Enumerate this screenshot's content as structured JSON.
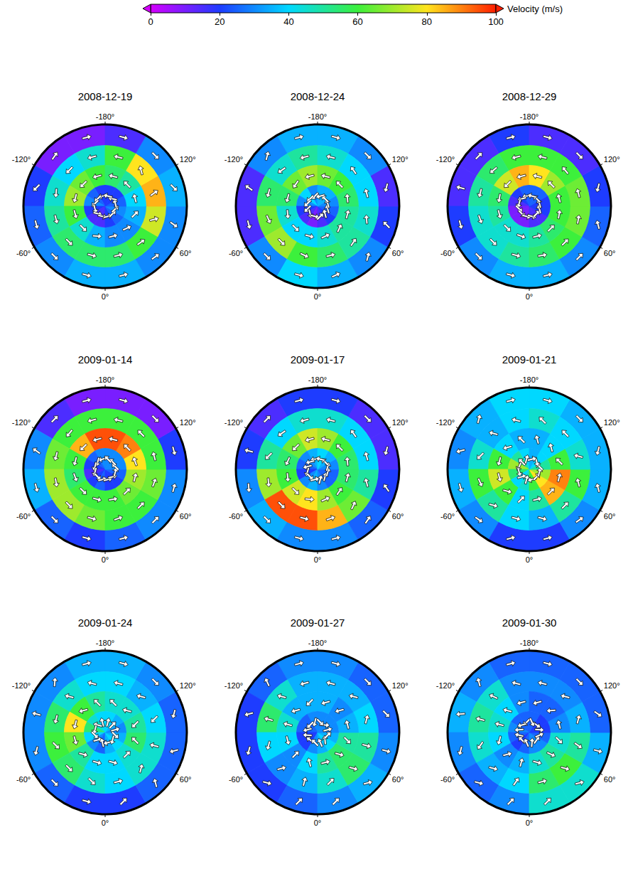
{
  "chart_data": {
    "type": "polar_vector_map",
    "colorbar": {
      "label": "Velocity (m/s)",
      "lim": [
        0,
        100
      ],
      "ticks": [
        0,
        20,
        40,
        60,
        80,
        100
      ],
      "colors": [
        "#d400ff",
        "#1e3cff",
        "#00d8ff",
        "#3cf03c",
        "#ffe41e",
        "#ff1e00"
      ]
    },
    "xlim": [
      -180,
      180
    ],
    "xticks": [
      {
        "value": -180,
        "label": "-180°"
      },
      {
        "value": -120,
        "label": "-120°"
      },
      {
        "value": -60,
        "label": "-60°"
      },
      {
        "value": 0,
        "label": "0°"
      },
      {
        "value": 60,
        "label": "60°"
      },
      {
        "value": 120,
        "label": "120°"
      }
    ],
    "ylim": [
      20,
      90
    ],
    "lat_edges": [
      20,
      38,
      55,
      72,
      90
    ],
    "lon_edges": [
      -180,
      -150,
      -120,
      -90,
      -60,
      -30,
      0,
      30,
      60,
      90,
      120,
      150,
      180
    ],
    "panels": [
      {
        "title": "2008-12-19",
        "speed": [
          [
            10,
            10,
            20,
            25,
            30,
            35,
            35,
            30,
            30,
            35,
            30,
            15
          ],
          [
            45,
            40,
            45,
            50,
            55,
            55,
            55,
            60,
            75,
            85,
            80,
            60
          ],
          [
            60,
            65,
            70,
            60,
            45,
            35,
            30,
            30,
            35,
            40,
            50,
            55
          ],
          [
            20,
            25,
            30,
            20,
            15,
            15,
            20,
            25,
            30,
            25,
            20,
            20
          ]
        ],
        "direction": [
          [
            270,
            260,
            120,
            90,
            90,
            90,
            90,
            100,
            200,
            240,
            270,
            270
          ],
          [
            90,
            90,
            80,
            90,
            90,
            90,
            90,
            100,
            150,
            160,
            120,
            90
          ],
          [
            90,
            90,
            90,
            90,
            90,
            80,
            90,
            110,
            120,
            90,
            90,
            90
          ],
          [
            90,
            90,
            120,
            90,
            60,
            90,
            90,
            90,
            120,
            90,
            60,
            90
          ]
        ]
      },
      {
        "title": "2008-12-24",
        "speed": [
          [
            35,
            30,
            15,
            15,
            30,
            40,
            35,
            30,
            20,
            15,
            30,
            35
          ],
          [
            50,
            45,
            55,
            65,
            70,
            60,
            55,
            50,
            45,
            40,
            40,
            45
          ],
          [
            70,
            65,
            55,
            45,
            40,
            40,
            45,
            50,
            50,
            55,
            60,
            65
          ],
          [
            30,
            40,
            30,
            20,
            15,
            10,
            15,
            20,
            25,
            30,
            35,
            35
          ]
        ],
        "direction": [
          [
            270,
            240,
            200,
            90,
            90,
            90,
            80,
            60,
            30,
            300,
            270,
            270
          ],
          [
            90,
            100,
            90,
            80,
            90,
            100,
            90,
            80,
            70,
            90,
            100,
            90
          ],
          [
            90,
            80,
            90,
            100,
            90,
            90,
            80,
            70,
            90,
            100,
            90,
            90
          ],
          [
            60,
            90,
            120,
            150,
            120,
            90,
            60,
            30,
            60,
            90,
            90,
            60
          ]
        ]
      },
      {
        "title": "2008-12-29",
        "speed": [
          [
            20,
            15,
            15,
            20,
            30,
            35,
            35,
            30,
            25,
            20,
            15,
            15
          ],
          [
            60,
            55,
            50,
            45,
            45,
            50,
            55,
            60,
            65,
            65,
            60,
            60
          ],
          [
            85,
            75,
            55,
            50,
            45,
            45,
            50,
            55,
            60,
            60,
            70,
            80
          ],
          [
            25,
            20,
            15,
            10,
            10,
            10,
            15,
            15,
            20,
            20,
            25,
            25
          ]
        ],
        "direction": [
          [
            270,
            270,
            180,
            90,
            90,
            90,
            90,
            90,
            60,
            300,
            270,
            270
          ],
          [
            90,
            95,
            90,
            85,
            90,
            90,
            95,
            90,
            85,
            90,
            95,
            90
          ],
          [
            90,
            90,
            85,
            90,
            90,
            95,
            90,
            90,
            85,
            90,
            90,
            90
          ],
          [
            90,
            120,
            90,
            60,
            90,
            90,
            120,
            90,
            60,
            90,
            90,
            90
          ]
        ]
      },
      {
        "title": "2009-01-14",
        "speed": [
          [
            10,
            15,
            30,
            35,
            25,
            20,
            25,
            30,
            30,
            20,
            10,
            10
          ],
          [
            60,
            60,
            65,
            70,
            70,
            65,
            60,
            60,
            65,
            60,
            60,
            60
          ],
          [
            95,
            85,
            60,
            55,
            60,
            60,
            60,
            65,
            70,
            80,
            90,
            95
          ],
          [
            30,
            25,
            20,
            15,
            20,
            25,
            20,
            20,
            25,
            30,
            30,
            30
          ]
        ],
        "direction": [
          [
            270,
            270,
            200,
            90,
            90,
            90,
            90,
            90,
            90,
            270,
            270,
            270
          ],
          [
            90,
            85,
            90,
            95,
            90,
            90,
            85,
            90,
            95,
            90,
            90,
            90
          ],
          [
            90,
            90,
            90,
            85,
            90,
            90,
            95,
            90,
            90,
            85,
            90,
            90
          ],
          [
            90,
            60,
            90,
            120,
            90,
            60,
            90,
            120,
            90,
            60,
            90,
            120
          ]
        ]
      },
      {
        "title": "2009-01-17",
        "speed": [
          [
            20,
            15,
            20,
            30,
            35,
            30,
            30,
            25,
            20,
            15,
            15,
            20
          ],
          [
            45,
            40,
            50,
            70,
            95,
            95,
            85,
            65,
            50,
            40,
            40,
            45
          ],
          [
            75,
            65,
            55,
            60,
            75,
            80,
            70,
            60,
            55,
            55,
            60,
            70
          ],
          [
            35,
            30,
            25,
            20,
            30,
            35,
            30,
            25,
            25,
            30,
            35,
            40
          ]
        ],
        "direction": [
          [
            270,
            270,
            180,
            100,
            90,
            90,
            90,
            80,
            40,
            300,
            270,
            270
          ],
          [
            90,
            100,
            120,
            100,
            90,
            90,
            85,
            70,
            60,
            90,
            100,
            90
          ],
          [
            90,
            90,
            100,
            100,
            90,
            80,
            80,
            80,
            90,
            100,
            90,
            90
          ],
          [
            90,
            120,
            150,
            120,
            90,
            60,
            30,
            60,
            90,
            120,
            90,
            90
          ]
        ]
      },
      {
        "title": "2009-01-21",
        "speed": [
          [
            40,
            35,
            30,
            35,
            30,
            20,
            20,
            30,
            35,
            35,
            35,
            40
          ],
          [
            40,
            35,
            45,
            60,
            50,
            40,
            35,
            50,
            60,
            45,
            40,
            45
          ],
          [
            35,
            40,
            60,
            75,
            60,
            40,
            50,
            85,
            90,
            60,
            40,
            35
          ],
          [
            40,
            50,
            70,
            55,
            40,
            45,
            60,
            80,
            70,
            50,
            40,
            35
          ]
        ],
        "direction": [
          [
            270,
            240,
            150,
            90,
            80,
            60,
            90,
            100,
            60,
            300,
            270,
            270
          ],
          [
            120,
            150,
            120,
            80,
            60,
            90,
            120,
            90,
            60,
            30,
            90,
            120
          ],
          [
            150,
            120,
            90,
            90,
            60,
            30,
            90,
            90,
            90,
            60,
            120,
            150
          ],
          [
            210,
            180,
            100,
            90,
            30,
            0,
            270,
            90,
            90,
            60,
            300,
            240
          ]
        ]
      },
      {
        "title": "2009-01-24",
        "speed": [
          [
            35,
            30,
            30,
            30,
            25,
            20,
            20,
            25,
            25,
            25,
            30,
            35
          ],
          [
            40,
            45,
            55,
            60,
            55,
            45,
            40,
            45,
            45,
            40,
            35,
            40
          ],
          [
            50,
            60,
            80,
            65,
            50,
            40,
            40,
            45,
            55,
            50,
            45,
            45
          ],
          [
            40,
            45,
            55,
            40,
            30,
            25,
            35,
            40,
            35,
            30,
            35,
            40
          ]
        ],
        "direction": [
          [
            270,
            230,
            180,
            120,
            90,
            90,
            60,
            30,
            330,
            300,
            270,
            270
          ],
          [
            120,
            150,
            90,
            60,
            90,
            120,
            90,
            60,
            0,
            330,
            60,
            90
          ],
          [
            150,
            120,
            90,
            90,
            60,
            90,
            120,
            90,
            30,
            330,
            60,
            120
          ],
          [
            180,
            150,
            90,
            60,
            30,
            330,
            270,
            240,
            210,
            180,
            180,
            180
          ]
        ]
      },
      {
        "title": "2009-01-27",
        "speed": [
          [
            30,
            25,
            20,
            20,
            20,
            25,
            30,
            35,
            30,
            25,
            25,
            30
          ],
          [
            35,
            45,
            55,
            40,
            30,
            35,
            45,
            55,
            50,
            40,
            35,
            35
          ],
          [
            35,
            35,
            45,
            40,
            30,
            40,
            50,
            55,
            50,
            35,
            30,
            35
          ],
          [
            30,
            25,
            25,
            20,
            20,
            30,
            35,
            40,
            35,
            30,
            30,
            30
          ]
        ],
        "direction": [
          [
            270,
            200,
            150,
            120,
            60,
            30,
            60,
            120,
            180,
            240,
            270,
            270
          ],
          [
            90,
            150,
            180,
            120,
            30,
            0,
            60,
            150,
            180,
            120,
            60,
            90
          ],
          [
            60,
            120,
            180,
            90,
            0,
            330,
            90,
            150,
            210,
            90,
            30,
            60
          ],
          [
            30,
            90,
            150,
            200,
            260,
            300,
            350,
            40,
            120,
            180,
            230,
            300
          ]
        ]
      },
      {
        "title": "2009-01-30",
        "speed": [
          [
            25,
            30,
            35,
            30,
            25,
            30,
            45,
            45,
            35,
            25,
            25,
            25
          ],
          [
            30,
            45,
            50,
            45,
            35,
            40,
            55,
            60,
            50,
            35,
            30,
            30
          ],
          [
            30,
            40,
            45,
            40,
            30,
            35,
            45,
            50,
            45,
            30,
            25,
            25
          ],
          [
            25,
            25,
            30,
            25,
            20,
            25,
            30,
            30,
            25,
            20,
            20,
            25
          ]
        ],
        "direction": [
          [
            270,
            210,
            160,
            120,
            60,
            30,
            60,
            120,
            180,
            230,
            270,
            270
          ],
          [
            120,
            160,
            180,
            140,
            60,
            20,
            90,
            150,
            200,
            120,
            60,
            90
          ],
          [
            90,
            150,
            180,
            120,
            30,
            0,
            120,
            160,
            210,
            90,
            40,
            60
          ],
          [
            60,
            120,
            160,
            210,
            270,
            320,
            20,
            80,
            140,
            200,
            260,
            320
          ]
        ]
      }
    ]
  }
}
